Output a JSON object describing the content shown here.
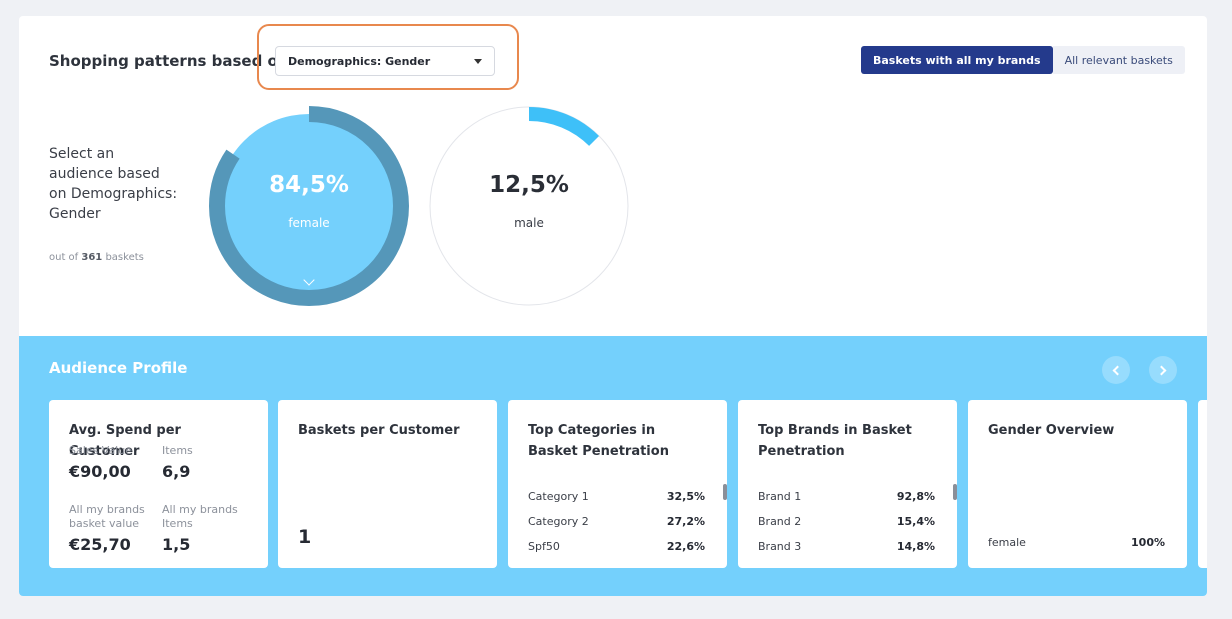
{
  "header": {
    "title": "Shopping patterns based on",
    "select_value": "Demographics: Gender",
    "toggle": {
      "active": "Baskets with all my brands",
      "inactive": "All relevant baskets"
    }
  },
  "audience": {
    "prompt": "Select an audience based on Demographics: Gender",
    "sub_prefix": "out of",
    "sub_count": "361",
    "sub_suffix": "baskets"
  },
  "segments": [
    {
      "pct": "84,5%",
      "label": "female",
      "value": 84.5,
      "selected": true
    },
    {
      "pct": "12,5%",
      "label": "male",
      "value": 12.5,
      "selected": false
    }
  ],
  "colors": {
    "accent_dark": "#243a8c",
    "light_blue": "#74d0fc",
    "ring_dark": "#5597b9",
    "bright_blue": "#3ec0f8",
    "highlight": "#e8884e"
  },
  "profile": {
    "title": "Audience Profile",
    "cards": {
      "spend": {
        "title": "Avg. Spend per Customer",
        "sales_label": "Sales Value",
        "sales_value": "€90,00",
        "items_label": "Items",
        "items_value": "6,9",
        "brands_value_label": "All my brands basket value",
        "brands_value": "€25,70",
        "brands_items_label": "All my brands Items",
        "brands_items": "1,5"
      },
      "baskets": {
        "title": "Baskets per Customer",
        "value": "1"
      },
      "categories": {
        "title": "Top Categories in Basket Penetration",
        "rows": [
          {
            "name": "Category 1",
            "value": "32,5%"
          },
          {
            "name": "Category 2",
            "value": "27,2%"
          },
          {
            "name": "Spf50",
            "value": "22,6%"
          }
        ]
      },
      "brands": {
        "title": "Top Brands in Basket Penetration",
        "rows": [
          {
            "name": "Brand 1",
            "value": "92,8%"
          },
          {
            "name": "Brand 2",
            "value": "15,4%"
          },
          {
            "name": "Brand 3",
            "value": "14,8%"
          }
        ]
      },
      "gender": {
        "title": "Gender Overview",
        "rows": [
          {
            "name": "female",
            "value": "100%"
          }
        ]
      }
    }
  }
}
